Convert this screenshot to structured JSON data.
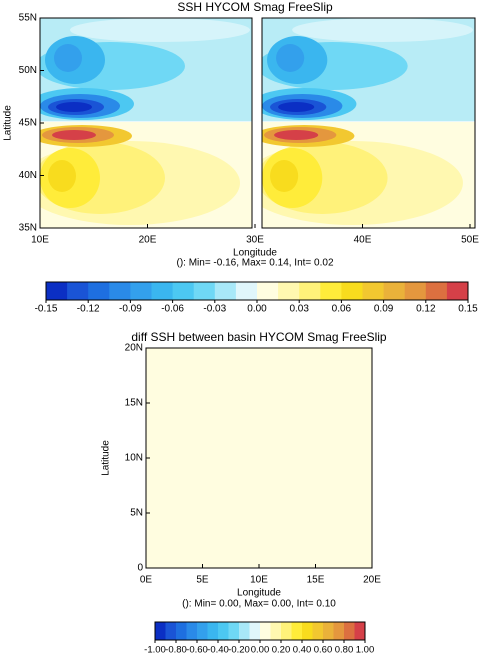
{
  "chart_data": [
    {
      "type": "contour",
      "title": "SSH HYCOM Smag FreeSlip",
      "xlabel": "Longitude",
      "ylabel": "Latitude",
      "annotation": "(): Min= -0.16, Max= 0.14, Int= 0.02",
      "xlim": [
        10,
        50
      ],
      "ylim": [
        35,
        55
      ],
      "xticks": [
        {
          "value": 10,
          "label": "10E"
        },
        {
          "value": 20,
          "label": "20E"
        },
        {
          "value": 30,
          "label": "30E"
        },
        {
          "value": 40,
          "label": "40E"
        },
        {
          "value": 50,
          "label": "50E"
        }
      ],
      "yticks": [
        {
          "value": 35,
          "label": "35N"
        },
        {
          "value": 40,
          "label": "40N"
        },
        {
          "value": 45,
          "label": "45N"
        },
        {
          "value": 50,
          "label": "50N"
        },
        {
          "value": 55,
          "label": "55N"
        }
      ],
      "colorbar": {
        "clim": [
          -0.15,
          0.15
        ],
        "colors": [
          "#0b2fc4",
          "#1a54d6",
          "#1e6fe0",
          "#2a8ae8",
          "#33a0ec",
          "#3ab6ef",
          "#4cc8f2",
          "#6fd8f5",
          "#a8e8f8",
          "#e0f6fb",
          "#fffde0",
          "#fff8b0",
          "#fff27a",
          "#ffec3a",
          "#f8dc1e",
          "#f2c830",
          "#eab23a",
          "#e4973e",
          "#dc7040",
          "#d54048"
        ],
        "ticks": [
          -0.15,
          -0.12,
          -0.09,
          -0.06,
          -0.03,
          {
            "value": 0,
            "label": "0.00"
          },
          0.03,
          0.06,
          0.09,
          0.12,
          0.15
        ]
      }
    },
    {
      "type": "contour",
      "title": "diff SSH between basin HYCOM Smag FreeSlip",
      "xlabel": "Longitude",
      "ylabel": "Latitude",
      "annotation": "(): Min= 0.00, Max= 0.00, Int= 0.10",
      "xlim": [
        0,
        20
      ],
      "ylim": [
        0,
        20
      ],
      "xticks": [
        {
          "value": 0,
          "label": "0E"
        },
        {
          "value": 5,
          "label": "5E"
        },
        {
          "value": 10,
          "label": "10E"
        },
        {
          "value": 15,
          "label": "15E"
        },
        {
          "value": 20,
          "label": "20E"
        }
      ],
      "yticks": [
        0,
        {
          "value": 5,
          "label": "5N"
        },
        {
          "value": 10,
          "label": "10N"
        },
        {
          "value": 15,
          "label": "15N"
        },
        {
          "value": 20,
          "label": "20N"
        }
      ],
      "colorbar": {
        "clim": [
          -1,
          1
        ],
        "colors": [
          "#0b2fc4",
          "#1a54d6",
          "#1e6fe0",
          "#2a8ae8",
          "#33a0ec",
          "#3ab6ef",
          "#4cc8f2",
          "#6fd8f5",
          "#a8e8f8",
          "#e0f6fb",
          "#fffde0",
          "#fff8b0",
          "#fff27a",
          "#ffec3a",
          "#f8dc1e",
          "#f2c830",
          "#eab23a",
          "#e4973e",
          "#dc7040",
          "#d54048"
        ],
        "ticks": [
          {
            "value": -1,
            "label": "-1.00"
          },
          {
            "value": -0.8,
            "label": "-0.80"
          },
          {
            "value": -0.6,
            "label": "-0.60"
          },
          {
            "value": -0.4,
            "label": "-0.40"
          },
          {
            "value": -0.2,
            "label": "-0.20"
          },
          {
            "value": 0,
            "label": "0.00"
          },
          {
            "value": 0.2,
            "label": "0.20"
          },
          {
            "value": 0.4,
            "label": "0.40"
          },
          {
            "value": 0.6,
            "label": "0.60"
          },
          {
            "value": 0.8,
            "label": "0.80"
          },
          {
            "value": 1,
            "label": "1.00"
          }
        ]
      }
    }
  ]
}
